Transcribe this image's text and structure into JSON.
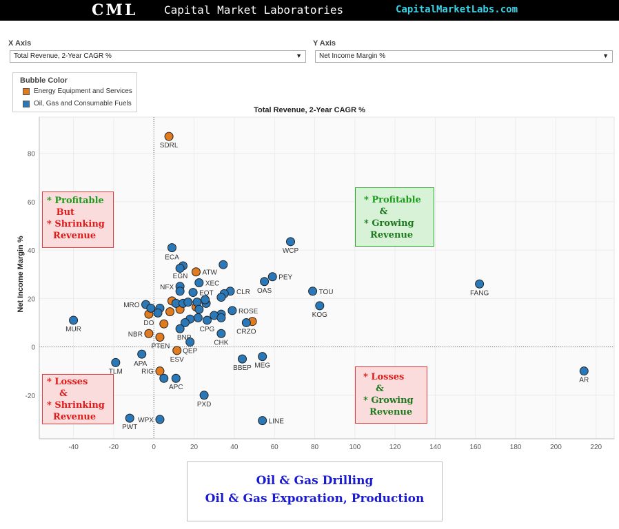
{
  "header": {
    "logo": "CML",
    "brand": "Capital Market Laboratories",
    "site": "CapitalMarketLabs.com"
  },
  "controls": {
    "x_axis_label": "X Axis",
    "x_axis_value": "Total Revenue, 2-Year CAGR %",
    "y_axis_label": "Y Axis",
    "y_axis_value": "Net Income Margin %"
  },
  "legend": {
    "title": "Bubble Color",
    "items": [
      {
        "label": "Energy Equipment and Services",
        "color": "#e07b1f"
      },
      {
        "label": "Oil, Gas and Consumable Fuels",
        "color": "#2a78b8"
      }
    ]
  },
  "quadrants": {
    "top_left": [
      {
        "text": "* Profitable",
        "color": "#1f9a1f"
      },
      {
        "text": "   But",
        "color": "#e01b1b"
      },
      {
        "text": "* Shrinking",
        "color": "#e01b1b"
      },
      {
        "text": "  Revenue",
        "color": "#e01b1b"
      }
    ],
    "top_right": [
      {
        "text": "* Profitable",
        "color": "#1f9a1f"
      },
      {
        "text": "     &",
        "color": "#1f7a1f"
      },
      {
        "text": "* Growing",
        "color": "#1f7a1f"
      },
      {
        "text": "  Revenue",
        "color": "#1f7a1f"
      }
    ],
    "bottom_left": [
      {
        "text": "* Losses",
        "color": "#e01b1b"
      },
      {
        "text": "    &",
        "color": "#e01b1b"
      },
      {
        "text": "* Shrinking",
        "color": "#e01b1b"
      },
      {
        "text": "  Revenue",
        "color": "#e01b1b"
      }
    ],
    "bottom_right": [
      {
        "text": "* Losses",
        "color": "#e01b1b"
      },
      {
        "text": "    &",
        "color": "#1f7a1f"
      },
      {
        "text": "* Growing",
        "color": "#1f7a1f"
      },
      {
        "text": "  Revenue",
        "color": "#1f7a1f"
      }
    ]
  },
  "footer": {
    "line1": "Oil & Gas Drilling",
    "line2": "Oil & Gas Exporation, Production"
  },
  "chart_data": {
    "type": "scatter",
    "title": "Total Revenue, 2-Year CAGR %",
    "xlabel": "",
    "ylabel": "Net Income Margin %",
    "xlim": [
      -57,
      229
    ],
    "ylim": [
      -38,
      95
    ],
    "xticks": [
      -40,
      -20,
      0,
      20,
      40,
      60,
      80,
      100,
      120,
      140,
      160,
      180,
      200,
      220
    ],
    "yticks": [
      -20,
      0,
      20,
      40,
      60,
      80
    ],
    "grid": true,
    "series": [
      {
        "name": "Energy Equipment and Services",
        "color": "#e07b1f",
        "points": [
          {
            "x": 7.5,
            "y": 87,
            "label": "SDRL"
          },
          {
            "x": 21,
            "y": 31,
            "label": "ATW"
          },
          {
            "x": 9,
            "y": 19,
            "label": ""
          },
          {
            "x": 21,
            "y": 16.5,
            "label": ""
          },
          {
            "x": 13,
            "y": 15.5,
            "label": ""
          },
          {
            "x": 8,
            "y": 14.5,
            "label": ""
          },
          {
            "x": -2.5,
            "y": 13.5,
            "label": "DO"
          },
          {
            "x": 5,
            "y": 9.5,
            "label": ""
          },
          {
            "x": 49,
            "y": 10.5,
            "label": ""
          },
          {
            "x": -2.5,
            "y": 5.5,
            "label": "NBR"
          },
          {
            "x": 3,
            "y": 4,
            "label": "PTEN"
          },
          {
            "x": 11.5,
            "y": -1.5,
            "label": "ESV"
          },
          {
            "x": 3,
            "y": -10,
            "label": "RIG"
          }
        ]
      },
      {
        "name": "Oil, Gas and Consumable Fuels",
        "color": "#2a78b8",
        "points": [
          {
            "x": 9,
            "y": 41,
            "label": "ECA"
          },
          {
            "x": 14.5,
            "y": 33.5,
            "label": "EGN"
          },
          {
            "x": 13,
            "y": 32.5,
            "label": ""
          },
          {
            "x": 34.5,
            "y": 34,
            "label": ""
          },
          {
            "x": 68,
            "y": 43.5,
            "label": "WCP"
          },
          {
            "x": 59,
            "y": 29,
            "label": "PEY"
          },
          {
            "x": 55,
            "y": 27,
            "label": "OAS"
          },
          {
            "x": 22.5,
            "y": 26.5,
            "label": "XEC"
          },
          {
            "x": 13,
            "y": 25,
            "label": "NFX"
          },
          {
            "x": 13,
            "y": 23,
            "label": ""
          },
          {
            "x": 19.5,
            "y": 22.5,
            "label": "EQT"
          },
          {
            "x": 38,
            "y": 23,
            "label": "CLR"
          },
          {
            "x": 35,
            "y": 22,
            "label": ""
          },
          {
            "x": 33.5,
            "y": 20.5,
            "label": ""
          },
          {
            "x": 79,
            "y": 23,
            "label": "TOU"
          },
          {
            "x": 162,
            "y": 26,
            "label": "FANG"
          },
          {
            "x": 82.5,
            "y": 17,
            "label": "KOG"
          },
          {
            "x": -4,
            "y": 17.5,
            "label": "MRO"
          },
          {
            "x": -1.5,
            "y": 16,
            "label": ""
          },
          {
            "x": 3,
            "y": 16,
            "label": ""
          },
          {
            "x": 2,
            "y": 14,
            "label": ""
          },
          {
            "x": 11,
            "y": 18,
            "label": ""
          },
          {
            "x": 14.5,
            "y": 18,
            "label": ""
          },
          {
            "x": 17,
            "y": 18.5,
            "label": ""
          },
          {
            "x": 21.5,
            "y": 18.5,
            "label": ""
          },
          {
            "x": 26,
            "y": 18,
            "label": ""
          },
          {
            "x": 25.5,
            "y": 19.5,
            "label": ""
          },
          {
            "x": 22.5,
            "y": 15.5,
            "label": ""
          },
          {
            "x": 39,
            "y": 15,
            "label": "ROSE"
          },
          {
            "x": 33.5,
            "y": 13.5,
            "label": ""
          },
          {
            "x": 30,
            "y": 13,
            "label": ""
          },
          {
            "x": 33.5,
            "y": 12,
            "label": ""
          },
          {
            "x": 22,
            "y": 12,
            "label": ""
          },
          {
            "x": 26.5,
            "y": 11,
            "label": "CPG"
          },
          {
            "x": 18,
            "y": 11.5,
            "label": ""
          },
          {
            "x": 15.5,
            "y": 10,
            "label": ""
          },
          {
            "x": 13,
            "y": 7.5,
            "label": "BNP"
          },
          {
            "x": 46,
            "y": 10,
            "label": "CRZO"
          },
          {
            "x": 33.5,
            "y": 5.5,
            "label": "CHK"
          },
          {
            "x": 18,
            "y": 2,
            "label": "QEP"
          },
          {
            "x": -40,
            "y": 11,
            "label": "MUR"
          },
          {
            "x": -6,
            "y": -3,
            "label": "APA"
          },
          {
            "x": -19,
            "y": -6.5,
            "label": "TLM"
          },
          {
            "x": 5,
            "y": -13,
            "label": ""
          },
          {
            "x": 11,
            "y": -13,
            "label": "APC"
          },
          {
            "x": 44,
            "y": -5,
            "label": "BBEP"
          },
          {
            "x": 54,
            "y": -4,
            "label": "MEG"
          },
          {
            "x": 25,
            "y": -20,
            "label": "PXD"
          },
          {
            "x": -12,
            "y": -29.5,
            "label": "PWT"
          },
          {
            "x": 3,
            "y": -30,
            "label": "WPX"
          },
          {
            "x": 54,
            "y": -30.5,
            "label": "LINE"
          },
          {
            "x": 214,
            "y": -10,
            "label": "AR"
          }
        ]
      }
    ]
  }
}
